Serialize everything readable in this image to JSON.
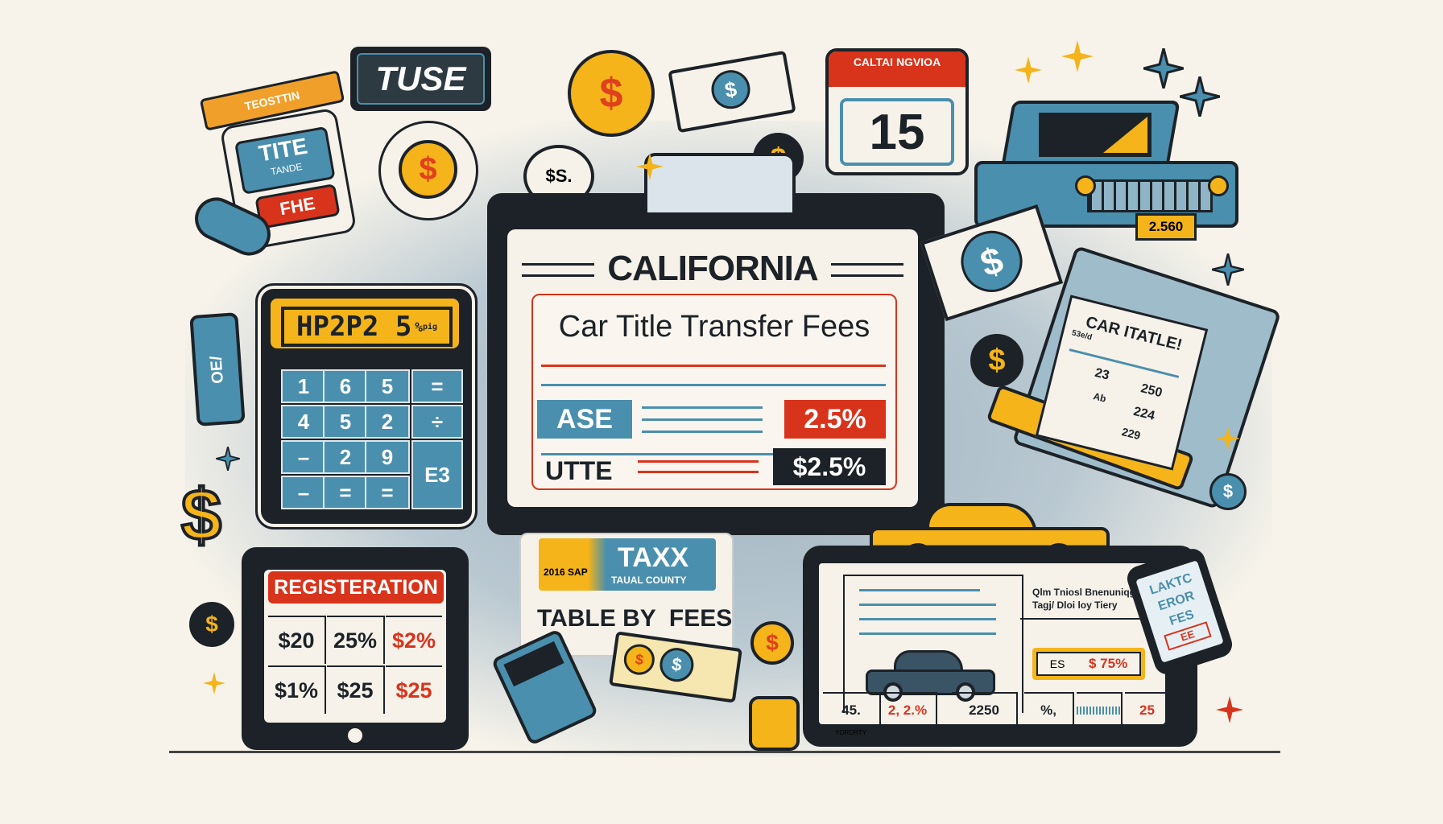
{
  "colors": {
    "accent_blue": "#4a8fad",
    "accent_red": "#d8341c",
    "accent_yellow": "#f4b41a",
    "ink": "#1c2227",
    "paper": "#f6f2ea"
  },
  "main_sign": {
    "state": "CALIFORNIA",
    "title": "Car Title Transfer Fees",
    "row1_label": "ASE",
    "row1_value": "2.5%",
    "row2_label": "UTTE",
    "row2_value": "$2.5%"
  },
  "top_left_tag": {
    "ribbon": "TEOSTTIN",
    "title": "TITE",
    "subtitle": "TANDE",
    "badge": "FHE"
  },
  "tuse_sign": {
    "label": "TUSE"
  },
  "calendar": {
    "header": "CALTAI NGVIOA",
    "day": "15"
  },
  "truck": {
    "plate": "2.560"
  },
  "calculator": {
    "display": "HP2P2 5",
    "display_unit": "%",
    "display_sub": "pig",
    "keys": [
      "1",
      "6",
      "5",
      "=",
      "4",
      "5",
      "2",
      "÷",
      "–",
      "2",
      "9",
      "E3",
      "–",
      "=",
      "="
    ]
  },
  "tag_left": {
    "label": "OE/"
  },
  "receipt": {
    "title": "CAR ITATLE!",
    "sub": "53e/d",
    "values": [
      "23",
      "250",
      "Ab",
      "224",
      "229"
    ]
  },
  "registration": {
    "header": "REGISTERATION",
    "cells": [
      "$20",
      "25%",
      "$2%",
      "$1%",
      "$25",
      "$25"
    ]
  },
  "tax_card": {
    "logo_text": "2016 SAP",
    "title": "TAXX",
    "subtitle": "TAUAL COUNTY",
    "caption": "TABLE BY  FEES"
  },
  "tablet": {
    "heading_line1": "Qlm Tniosl Bnenuniqg",
    "heading_line2": "Tagj/ Dloi loy Tiery",
    "price_label": "ES",
    "price_value": "$ 75%",
    "cells": [
      "45.",
      "2, 2.%",
      "2250",
      "%,",
      "",
      "25"
    ],
    "cell_sub": "YORDRTY"
  },
  "phone": {
    "lines": [
      "LAKTC",
      "EROR",
      "FES"
    ],
    "stamp": "EE"
  },
  "coin_small": {
    "label": "$S."
  },
  "dollar": "$"
}
